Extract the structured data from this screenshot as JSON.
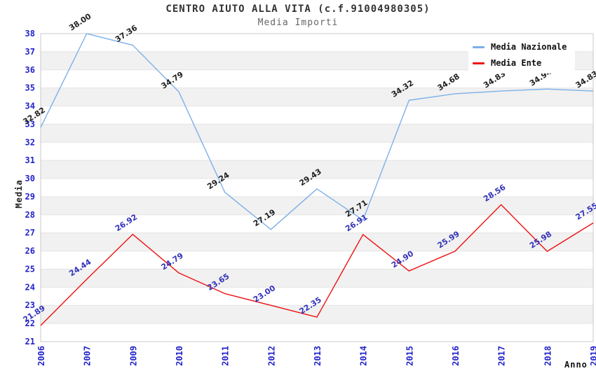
{
  "header": {
    "title": "CENTRO AIUTO ALLA VITA (c.f.91004980305)",
    "subtitle": "Media Importi"
  },
  "chart_data": {
    "type": "line",
    "title": "CENTRO AIUTO ALLA VITA (c.f.91004980305)",
    "subtitle": "Media Importi",
    "xlabel": "Anno",
    "ylabel": "Media",
    "categories": [
      "2006",
      "2007",
      "2009",
      "2010",
      "2011",
      "2012",
      "2013",
      "2014",
      "2015",
      "2016",
      "2017",
      "2018",
      "2019"
    ],
    "ylim": [
      21,
      38
    ],
    "ytick_step": 1,
    "grid": "alternating-horizontal-bands",
    "legend_position": "top-right",
    "value_label_decimals": 2,
    "series": [
      {
        "name": "Media Nazionale",
        "color": "#7BB0E9",
        "label_color": "#222222",
        "values": [
          32.82,
          38.0,
          37.36,
          34.79,
          29.24,
          27.19,
          29.43,
          27.71,
          34.32,
          34.68,
          34.83,
          34.94,
          34.83
        ]
      },
      {
        "name": "Media Ente",
        "color": "#EE1111",
        "label_color": "#3333BB",
        "values": [
          21.89,
          24.44,
          26.92,
          24.79,
          23.65,
          23.0,
          22.35,
          26.91,
          24.9,
          25.99,
          28.56,
          25.98,
          27.55
        ]
      }
    ],
    "style": {
      "axis_tick_color": "#2222CC",
      "band_color": "#F1F1F1",
      "gridline_color": "#E4E4E4",
      "border_color": "#C8C8C8",
      "title_color": "#333333",
      "subtitle_color": "#666666"
    }
  }
}
